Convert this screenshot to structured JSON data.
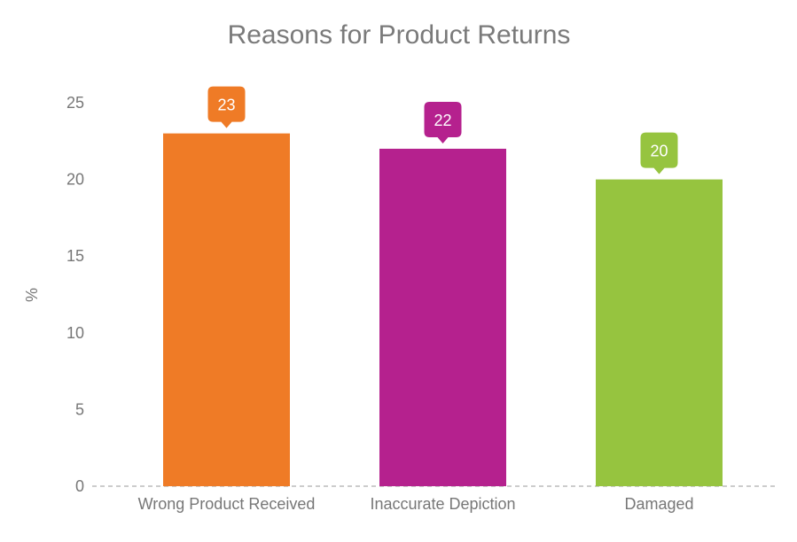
{
  "chart_data": {
    "type": "bar",
    "title": "Reasons for Product Returns",
    "xlabel": "",
    "ylabel": "%",
    "categories": [
      "Wrong Product Received",
      "Inaccurate Depiction",
      "Damaged"
    ],
    "values": [
      23,
      22,
      20
    ],
    "colors": [
      "#EF7B26",
      "#B5218E",
      "#96C43F"
    ],
    "ylim": [
      0,
      25
    ],
    "yticks": [
      0,
      5,
      10,
      15,
      20,
      25
    ],
    "grid": false,
    "data_labels": true
  }
}
